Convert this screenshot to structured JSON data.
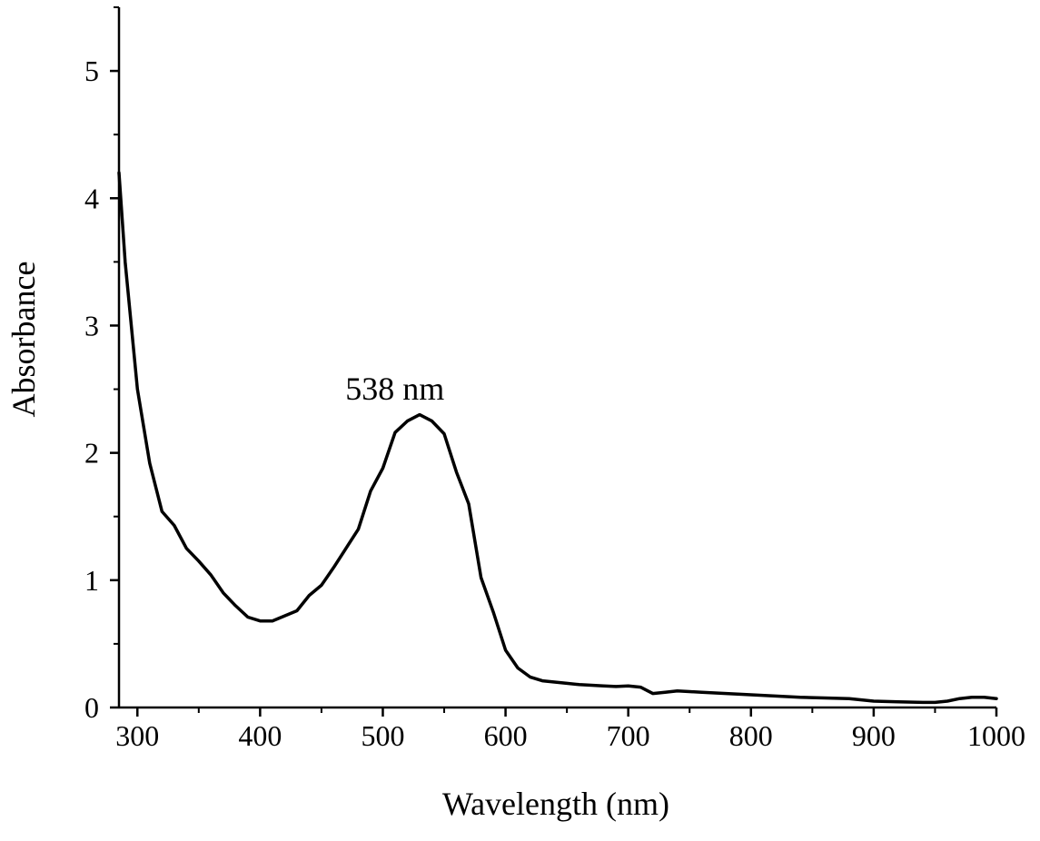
{
  "chart_data": {
    "type": "line",
    "xlabel": "Wavelength (nm)",
    "ylabel": "Absorbance",
    "xlim": [
      285,
      1000
    ],
    "ylim": [
      0,
      5.5
    ],
    "x_ticks": [
      300,
      400,
      500,
      600,
      700,
      800,
      900,
      1000
    ],
    "x_tick_labels": [
      "300",
      "400",
      "500",
      "600",
      "700",
      "800",
      "900",
      "1000"
    ],
    "y_ticks": [
      0,
      1,
      2,
      3,
      4,
      5
    ],
    "y_tick_labels": [
      "0",
      "1",
      "2",
      "3",
      "4",
      "5"
    ],
    "grid": false,
    "legend": "none",
    "line_color": "#000000",
    "annotations": [
      {
        "text": "538 nm",
        "x": 538,
        "y": 2.42
      }
    ],
    "series": [
      {
        "x": [
          285,
          290,
          300,
          310,
          320,
          330,
          340,
          350,
          360,
          370,
          380,
          390,
          400,
          410,
          420,
          430,
          440,
          450,
          460,
          470,
          480,
          490,
          500,
          510,
          520,
          530,
          540,
          550,
          560,
          570,
          580,
          590,
          600,
          610,
          620,
          630,
          640,
          650,
          660,
          670,
          680,
          690,
          700,
          710,
          720,
          730,
          740,
          750,
          760,
          780,
          800,
          820,
          840,
          860,
          880,
          900,
          920,
          940,
          950,
          960,
          970,
          980,
          990,
          1000
        ],
        "y": [
          4.2,
          3.5,
          2.5,
          1.92,
          1.54,
          1.43,
          1.25,
          1.15,
          1.04,
          0.9,
          0.8,
          0.71,
          0.68,
          0.68,
          0.72,
          0.76,
          0.88,
          0.96,
          1.1,
          1.25,
          1.4,
          1.7,
          1.88,
          2.16,
          2.25,
          2.3,
          2.25,
          2.15,
          1.85,
          1.6,
          1.02,
          0.75,
          0.45,
          0.31,
          0.24,
          0.21,
          0.2,
          0.19,
          0.18,
          0.175,
          0.17,
          0.165,
          0.17,
          0.16,
          0.11,
          0.12,
          0.13,
          0.125,
          0.12,
          0.11,
          0.1,
          0.09,
          0.08,
          0.075,
          0.07,
          0.05,
          0.045,
          0.04,
          0.04,
          0.05,
          0.07,
          0.08,
          0.08,
          0.07
        ]
      }
    ]
  }
}
